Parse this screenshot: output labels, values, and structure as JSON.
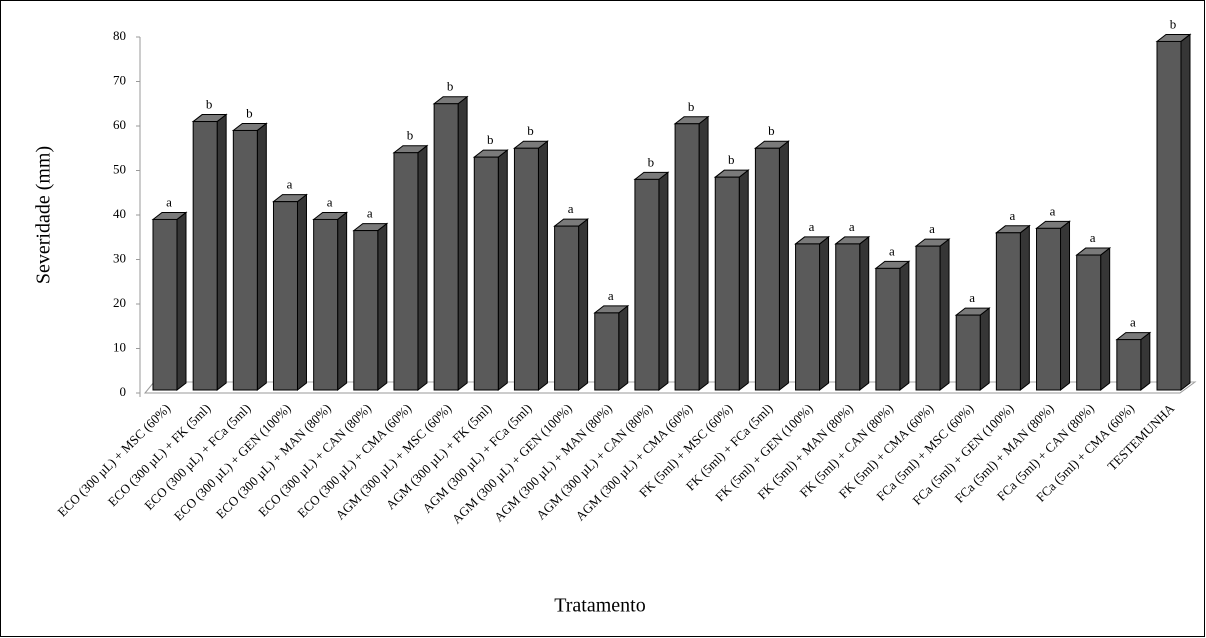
{
  "chart_data": {
    "type": "bar3d",
    "y_label": "Severidade (mm)",
    "x_label": "Tratamento",
    "categories": [
      "ECO (300 µL) + MSC (60%)",
      "ECO (300 µL) + FK (5ml)",
      "ECO (300 µL) + FCa (5ml)",
      "ECO (300 µL) + GEN (100%)",
      "ECO (300 µL) + MAN (80%)",
      "ECO (300 µL) + CAN (80%)",
      "ECO (300 µL) + CMA (60%)",
      "AGM (300 µL) + MSC (60%)",
      "AGM (300 µL) + FK (5ml)",
      "AGM (300 µL) + FCa (5ml)",
      "AGM (300 µL) + GEN (100%)",
      "AGM (300 µL) + MAN (80%)",
      "AGM (300 µL) + CAN (80%)",
      "AGM (300 µL) + CMA (60%)",
      "FK (5ml) + MSC (60%)",
      "FK (5ml) + FCa (5ml)",
      "FK (5ml) + GEN (100%)",
      "FK (5ml) + MAN (80%)",
      "FK (5ml) + CAN (80%)",
      "FK (5ml) + CMA (60%)",
      "FCa (5ml) + MSC (60%)",
      "FCa (5ml) + GEN (100%)",
      "FCa (5ml) + MAN (80%)",
      "FCa (5ml) + CAN (80%)",
      "FCa (5ml) + CMA (60%)",
      "TESTEMUNHA"
    ],
    "values": [
      39,
      61,
      59,
      43,
      39,
      36.5,
      54,
      65,
      53,
      55,
      37.5,
      18,
      48,
      60.5,
      48.5,
      55,
      33.5,
      33.5,
      28,
      33,
      17.5,
      36,
      37,
      31,
      12,
      79
    ],
    "letters": [
      "a",
      "b",
      "b",
      "a",
      "a",
      "a",
      "b",
      "b",
      "b",
      "b",
      "a",
      "a",
      "b",
      "b",
      "b",
      "b",
      "a",
      "a",
      "a",
      "a",
      "a",
      "a",
      "a",
      "a",
      "a",
      "b"
    ],
    "color": "#5a5a5a",
    "ylim": [
      0,
      80
    ],
    "yticks": [
      0,
      10,
      20,
      30,
      40,
      50,
      60,
      70,
      80
    ],
    "grid": false
  }
}
